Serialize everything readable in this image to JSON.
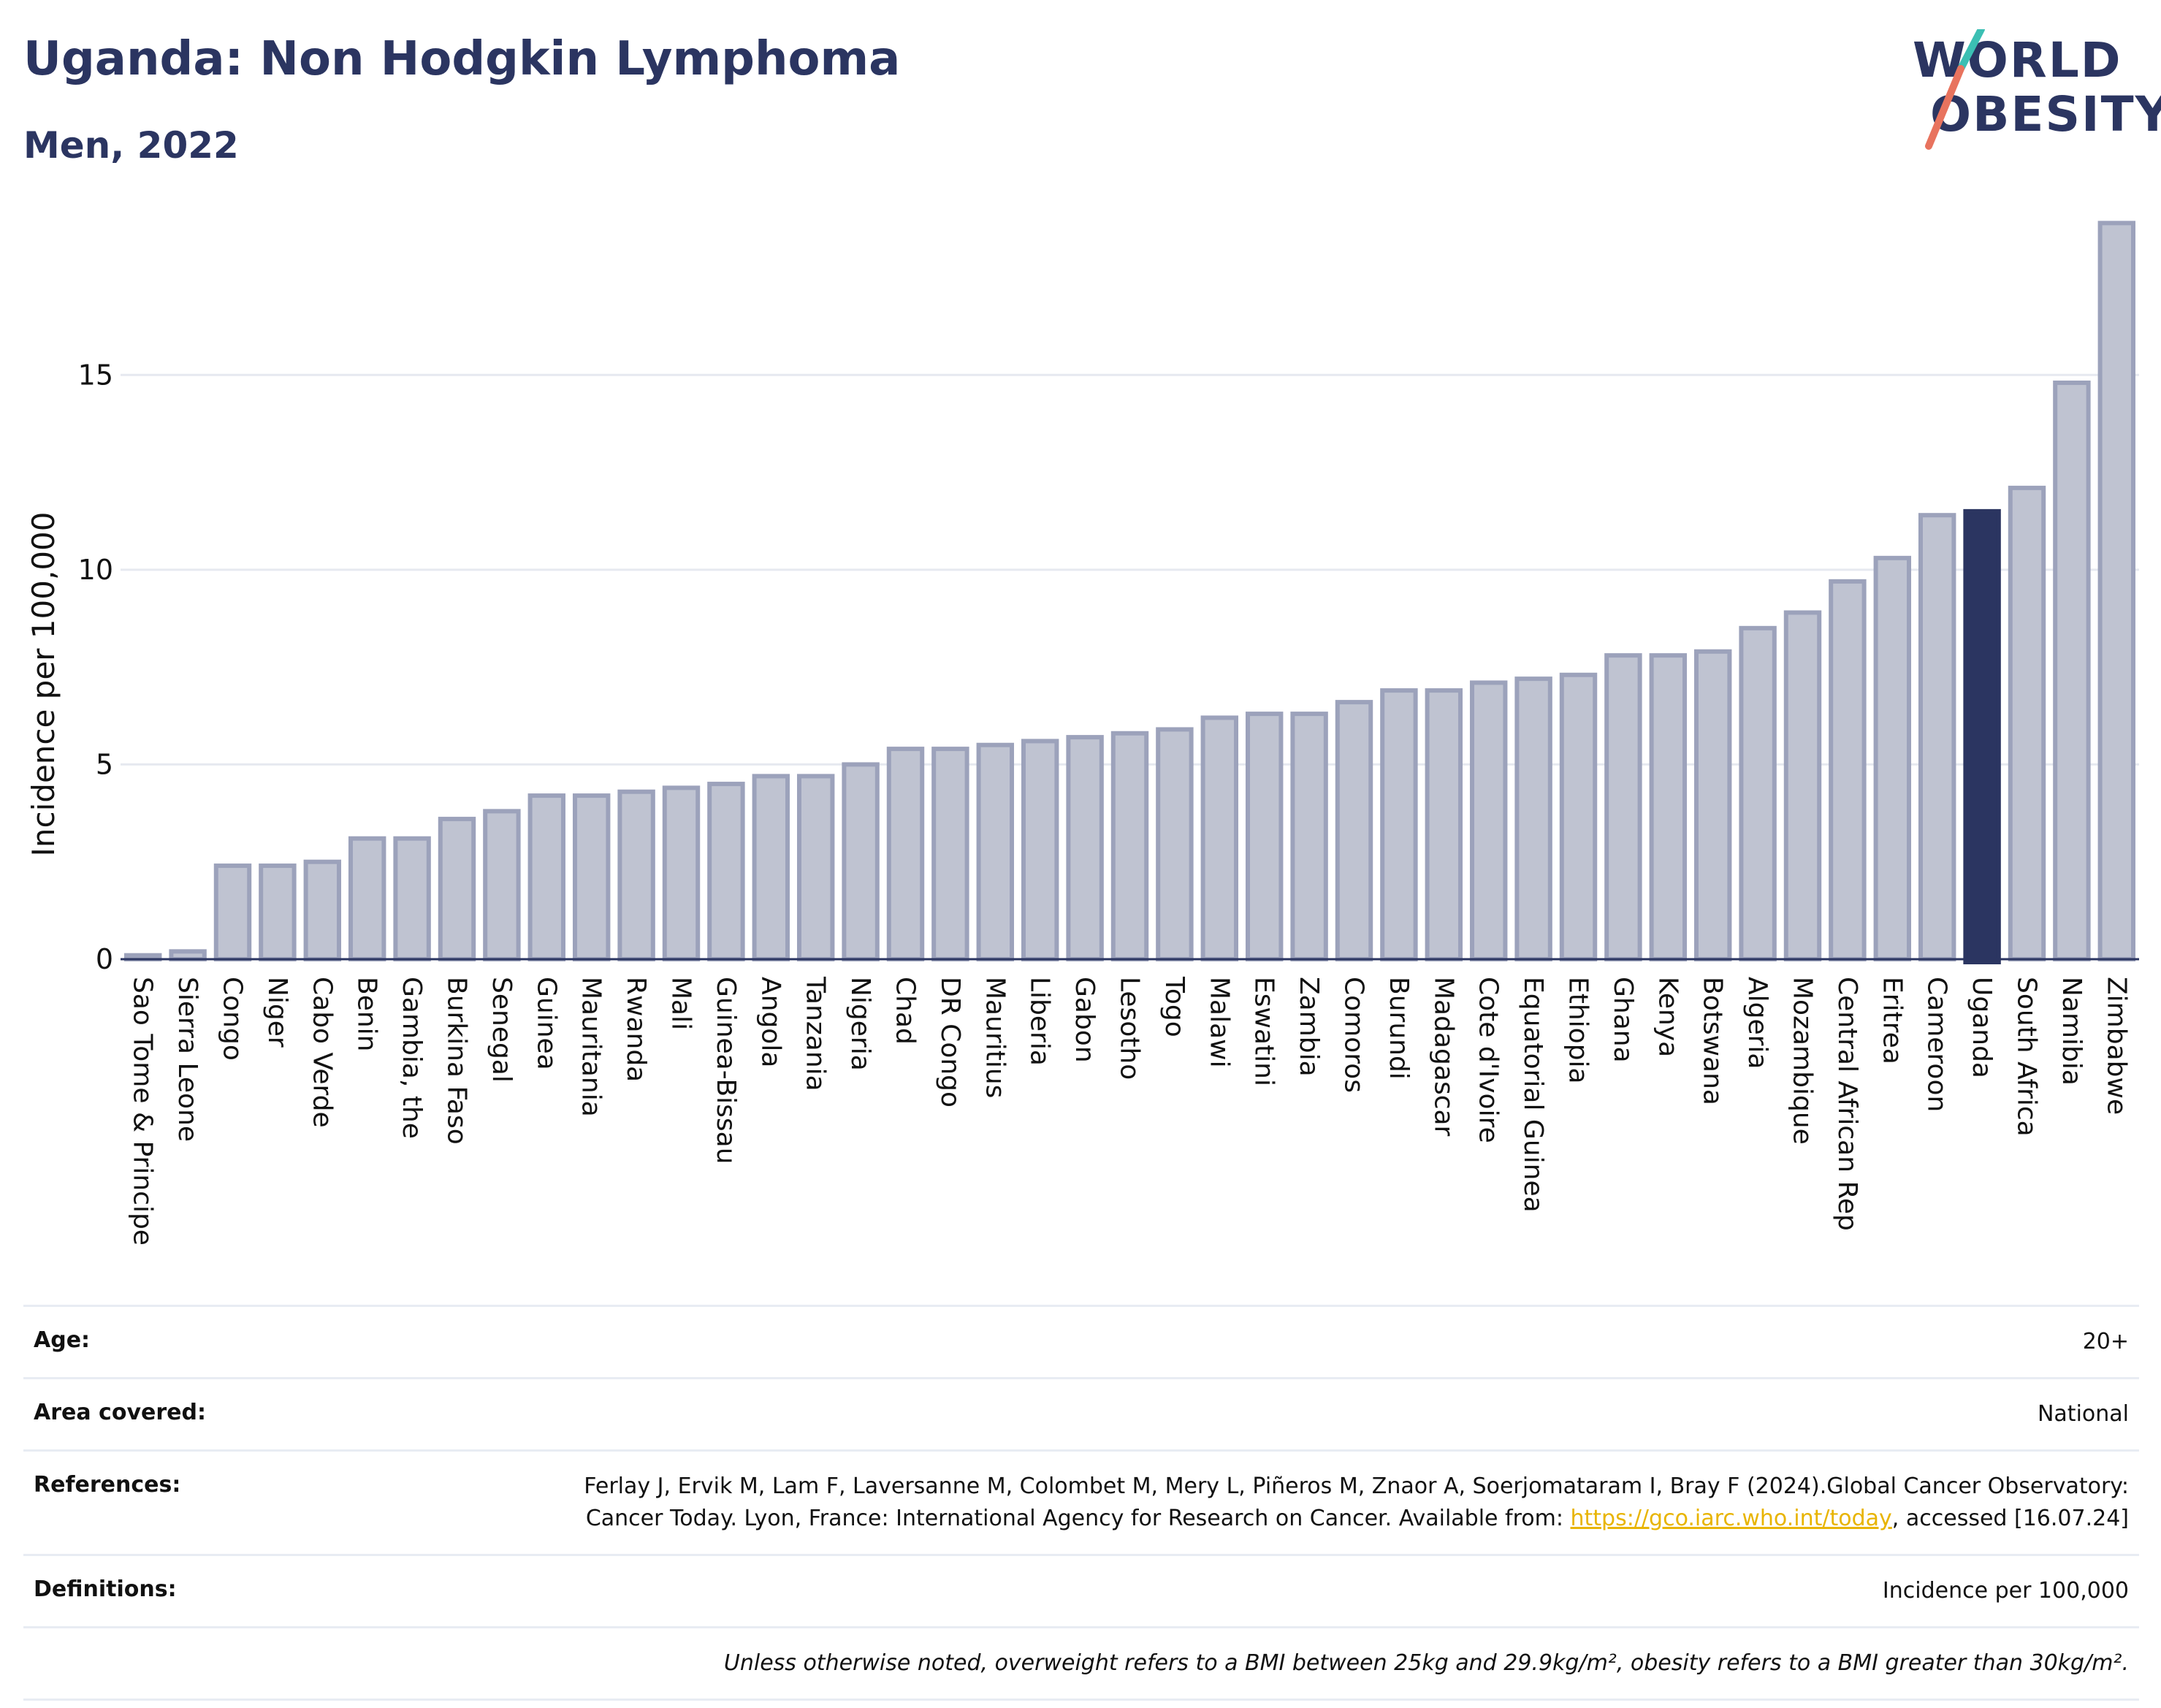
{
  "header": {
    "title": "Uganda: Non Hodgkin Lymphoma",
    "subtitle": "Men, 2022"
  },
  "logo": {
    "line1": "WORLD",
    "line2": "OBESITY",
    "colors": {
      "text": "#2b3561",
      "slash_top": "#3bbfb3",
      "slash_bottom": "#e8735e"
    }
  },
  "chart_data": {
    "type": "bar",
    "title": "",
    "xlabel": "",
    "ylabel": "Incidence per 100,000",
    "ylim": [
      0,
      19
    ],
    "yticks": [
      0,
      5,
      10,
      15
    ],
    "grid": true,
    "highlight": "Uganda",
    "colors": {
      "bar": "#bfc3d1",
      "bar_border": "#9ca2bb",
      "highlight": "#2b3561",
      "grid": "#e6e9f0",
      "axis": "#2b3561"
    },
    "categories": [
      "Sao Tome & Principe",
      "Sierra Leone",
      "Congo",
      "Niger",
      "Cabo Verde",
      "Benin",
      "Gambia, the",
      "Burkina Faso",
      "Senegal",
      "Guinea",
      "Mauritania",
      "Rwanda",
      "Mali",
      "Guinea-Bissau",
      "Angola",
      "Tanzania",
      "Nigeria",
      "Chad",
      "DR Congo",
      "Mauritius",
      "Liberia",
      "Gabon",
      "Lesotho",
      "Togo",
      "Malawi",
      "Eswatini",
      "Zambia",
      "Comoros",
      "Burundi",
      "Madagascar",
      "Cote d'Ivoire",
      "Equatorial Guinea",
      "Ethiopia",
      "Ghana",
      "Kenya",
      "Botswana",
      "Algeria",
      "Mozambique",
      "Central African Rep",
      "Eritrea",
      "Cameroon",
      "Uganda",
      "South Africa",
      "Namibia",
      "Zimbabwe"
    ],
    "values": [
      0.1,
      0.2,
      2.4,
      2.4,
      2.5,
      3.1,
      3.1,
      3.6,
      3.8,
      4.2,
      4.2,
      4.3,
      4.4,
      4.5,
      4.7,
      4.7,
      5.0,
      5.4,
      5.4,
      5.5,
      5.6,
      5.7,
      5.8,
      5.9,
      6.2,
      6.3,
      6.3,
      6.6,
      6.9,
      6.9,
      7.1,
      7.2,
      7.3,
      7.8,
      7.8,
      7.9,
      8.5,
      8.9,
      9.7,
      10.3,
      11.4,
      11.5,
      12.1,
      14.8,
      18.9
    ]
  },
  "info": {
    "age_label": "Age:",
    "age_value": "20+",
    "area_label": "Area covered:",
    "area_value": "National",
    "references_label": "References:",
    "references_text_1": "Ferlay J, Ervik M, Lam F, Laversanne M, Colombet M, Mery L, Piñeros M, Znaor A, Soerjomataram I, Bray F (2024).Global Cancer Observatory: Cancer Today. Lyon, France: International Agency for Research on Cancer. Available from: ",
    "references_link": "https://gco.iarc.who.int/today",
    "references_text_2": ", accessed [16.07.24]",
    "definitions_label": "Definitions:",
    "definitions_value": "Incidence per 100,000",
    "note": "Unless otherwise noted, overweight refers to a BMI between 25kg and 29.9kg/m², obesity refers to a BMI greater than 30kg/m²."
  }
}
